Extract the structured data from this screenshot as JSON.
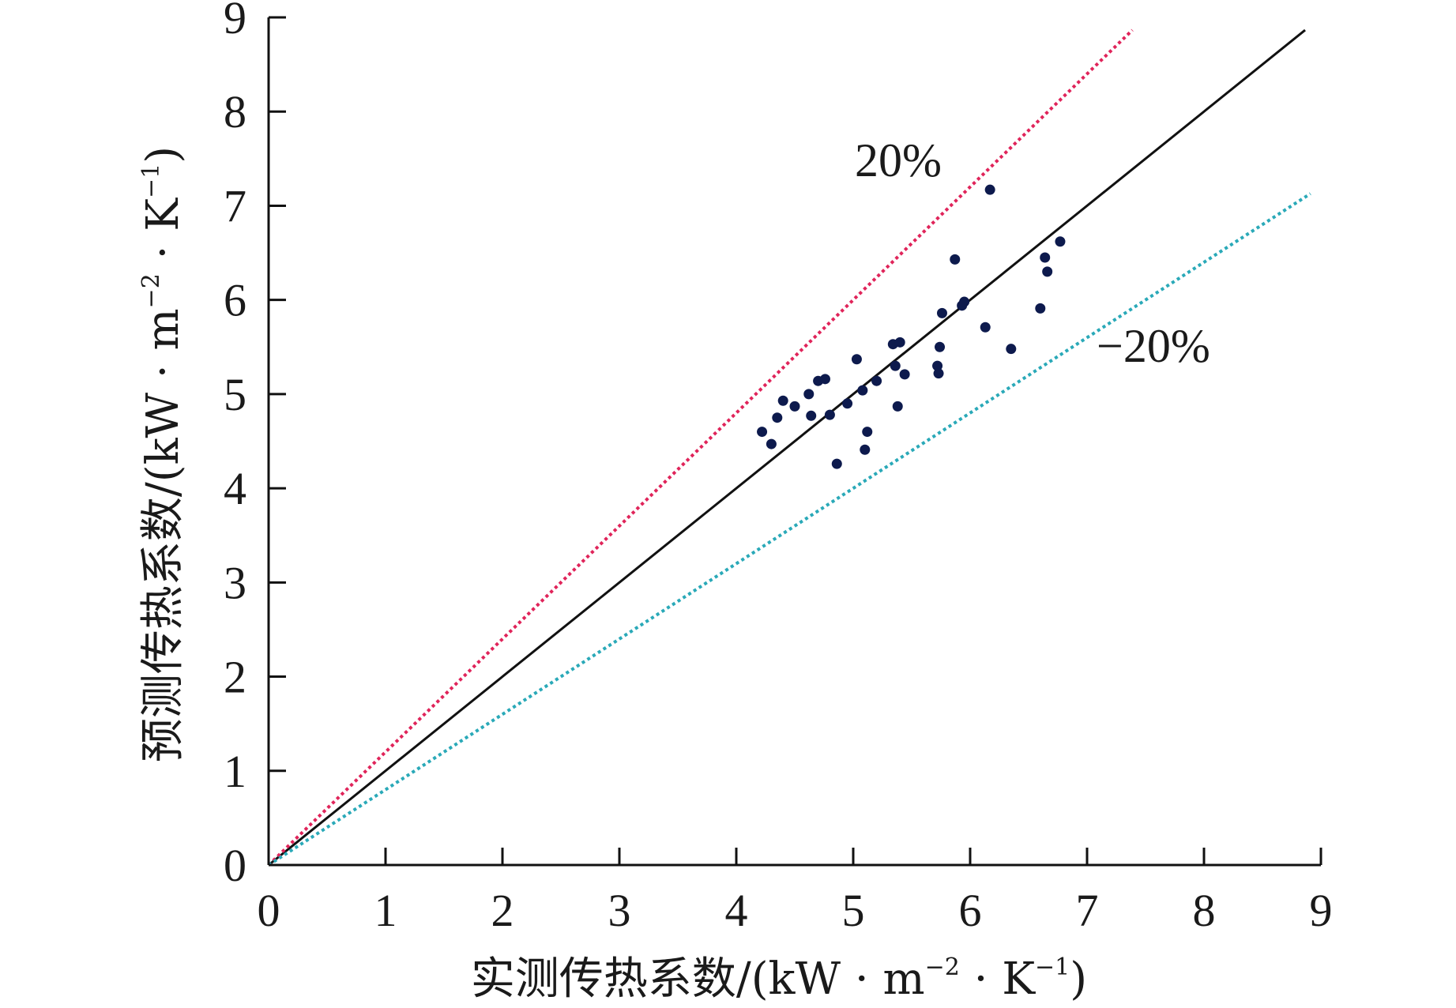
{
  "chart_data": {
    "type": "scatter",
    "title": "",
    "xlabel": {
      "main": "实测传热系数/(kW · m",
      "sup1": "−2",
      "mid": " · K",
      "sup2": "−1",
      "end": ")"
    },
    "ylabel": {
      "main": "预测传热系数/(kW · m",
      "sup1": "−2",
      "mid": " · K",
      "sup2": "−1",
      "end": ")"
    },
    "xlim": [
      0,
      9
    ],
    "ylim": [
      0,
      9
    ],
    "xticks": [
      "0",
      "1",
      "2",
      "3",
      "4",
      "5",
      "6",
      "7",
      "8",
      "9"
    ],
    "yticks": [
      "0",
      "1",
      "2",
      "3",
      "4",
      "5",
      "6",
      "7",
      "8",
      "9"
    ],
    "grid": false,
    "lines": [
      {
        "label": "",
        "slope": 1.0,
        "style": "solid",
        "color": "#111111"
      },
      {
        "label": "20%",
        "slope": 1.2,
        "style": "dotted",
        "color": "#e0245a"
      },
      {
        "label": "−20%",
        "slope": 0.8,
        "style": "dotted",
        "color": "#2aa9b8"
      }
    ],
    "points_color": "#0d1a4d",
    "points": [
      [
        4.22,
        4.6
      ],
      [
        4.3,
        4.47
      ],
      [
        4.35,
        4.75
      ],
      [
        4.4,
        4.93
      ],
      [
        4.5,
        4.87
      ],
      [
        4.62,
        5.0
      ],
      [
        4.64,
        4.77
      ],
      [
        4.7,
        5.14
      ],
      [
        4.76,
        5.16
      ],
      [
        4.8,
        4.78
      ],
      [
        4.86,
        4.26
      ],
      [
        4.95,
        4.9
      ],
      [
        5.03,
        5.37
      ],
      [
        5.08,
        5.04
      ],
      [
        5.1,
        4.41
      ],
      [
        5.12,
        4.6
      ],
      [
        5.2,
        5.14
      ],
      [
        5.34,
        5.53
      ],
      [
        5.36,
        5.3
      ],
      [
        5.38,
        4.87
      ],
      [
        5.4,
        5.55
      ],
      [
        5.44,
        5.21
      ],
      [
        5.72,
        5.3
      ],
      [
        5.73,
        5.22
      ],
      [
        5.74,
        5.5
      ],
      [
        5.76,
        5.86
      ],
      [
        5.87,
        6.43
      ],
      [
        5.93,
        5.94
      ],
      [
        5.95,
        5.98
      ],
      [
        6.13,
        5.71
      ],
      [
        6.17,
        7.17
      ],
      [
        6.35,
        5.48
      ],
      [
        6.6,
        5.91
      ],
      [
        6.64,
        6.45
      ],
      [
        6.66,
        6.3
      ],
      [
        6.77,
        6.62
      ]
    ]
  }
}
